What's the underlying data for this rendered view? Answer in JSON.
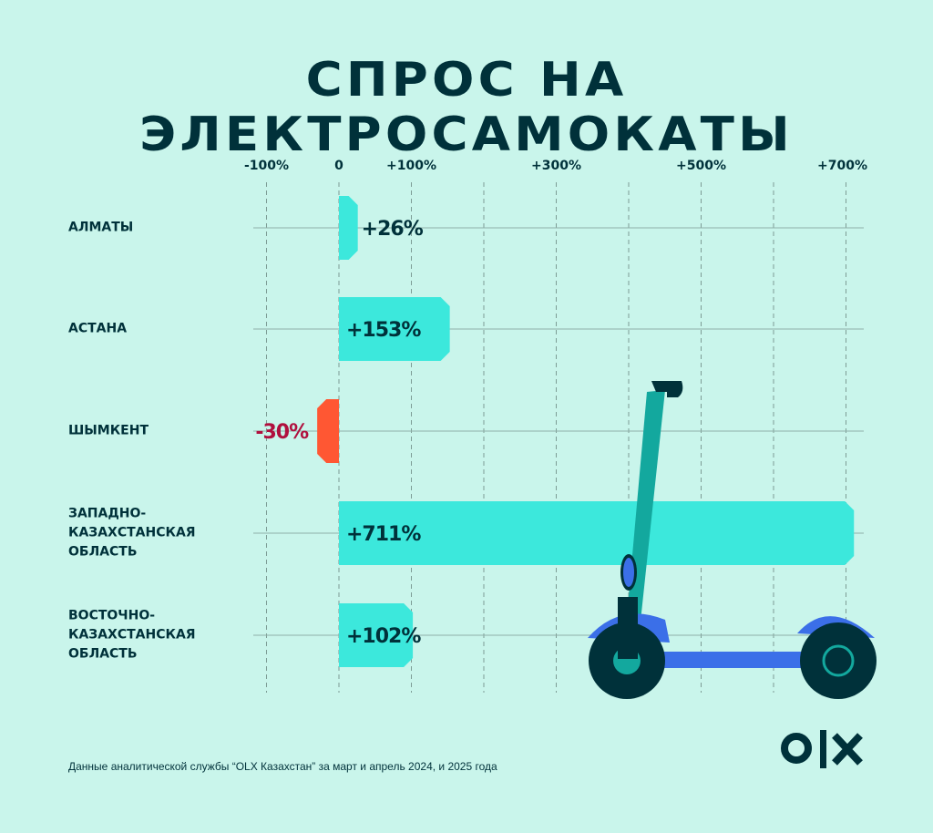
{
  "title": "СПРОС НА ЭЛЕКТРОСАМОКАТЫ",
  "footnote": "Данные аналитической службы “OLX Казахстан” за март и апрель 2024, и 2025 года",
  "logo": "OLX",
  "colors": {
    "background": "#c9f5eb",
    "positive": "#3ce8dc",
    "negative": "#ff5733",
    "text": "#00313a",
    "negative_label": "#b0103e"
  },
  "chart_data": {
    "type": "bar",
    "orientation": "horizontal",
    "title": "СПРОС НА ЭЛЕКТРОСАМОКАТЫ",
    "categories": [
      "АЛМАТЫ",
      "АСТАНА",
      "ШЫМКЕНТ",
      "ЗАПАДНО-КАЗАХСТАНСКАЯ ОБЛАСТЬ",
      "ВОСТОЧНО-КАЗАХСТАНСКАЯ ОБЛАСТЬ"
    ],
    "category_lines": [
      [
        "АЛМАТЫ"
      ],
      [
        "АСТАНА"
      ],
      [
        "ШЫМКЕНТ"
      ],
      [
        "ЗАПАДНО-",
        "КАЗАХСТАНСКАЯ",
        "ОБЛАСТЬ"
      ],
      [
        "ВОСТОЧНО-",
        "КАЗАХСТАНСКАЯ",
        "ОБЛАСТЬ"
      ]
    ],
    "values": [
      26,
      153,
      -30,
      711,
      102
    ],
    "data_labels": [
      "+26%",
      "+153%",
      "-30%",
      "+711%",
      "+102%"
    ],
    "xlim": [
      -100,
      700
    ],
    "x_gridlines": [
      -100,
      0,
      100,
      200,
      300,
      400,
      500,
      600,
      700
    ],
    "tick_values": [
      -100,
      0,
      100,
      300,
      500,
      700
    ],
    "tick_labels": [
      "-100%",
      "0",
      "+100%",
      "+300%",
      "+500%",
      "+700%"
    ],
    "grid": true
  }
}
